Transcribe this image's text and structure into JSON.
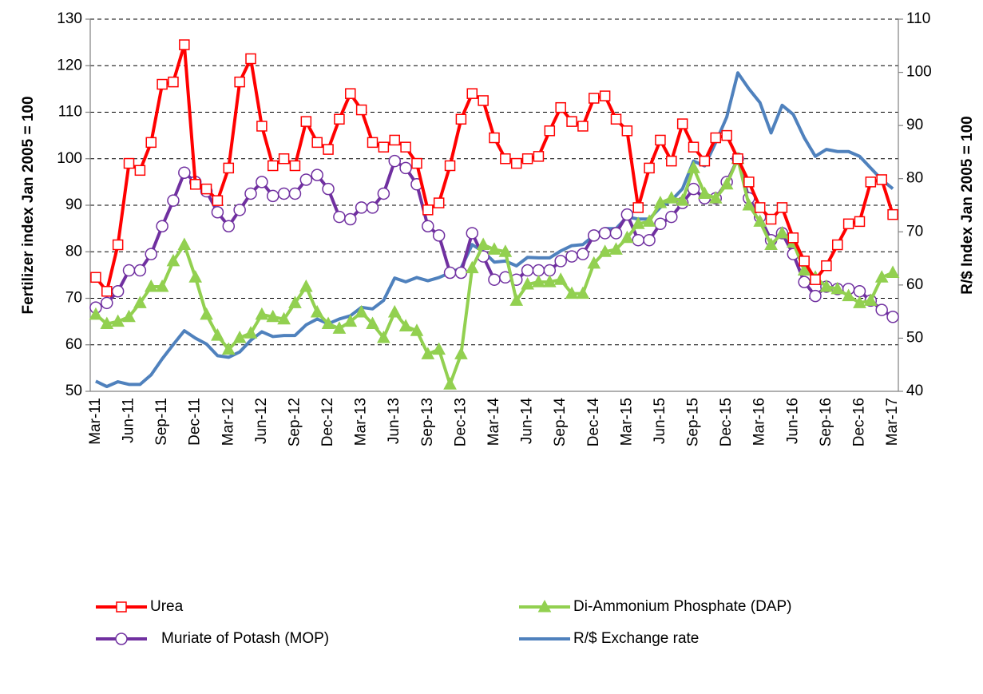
{
  "chart_data": {
    "type": "line",
    "y_label": "Fertilizer index Jan 2005 = 100",
    "y2_label": "R/$ Index Jan 2005 = 100",
    "categories": [
      "Mar-11",
      null,
      null,
      "Jun-11",
      null,
      null,
      "Sep-11",
      null,
      null,
      "Dec-11",
      null,
      null,
      "Mar-12",
      null,
      null,
      "Jun-12",
      null,
      null,
      "Sep-12",
      null,
      null,
      "Dec-12",
      null,
      null,
      "Mar-13",
      null,
      null,
      "Jun-13",
      null,
      null,
      "Sep-13",
      null,
      null,
      "Dec-13",
      null,
      null,
      "Mar-14",
      null,
      null,
      "Jun-14",
      null,
      null,
      "Sep-14",
      null,
      null,
      "Dec-14",
      null,
      null,
      "Mar-15",
      null,
      null,
      "Jun-15",
      null,
      null,
      "Sep-15",
      null,
      null,
      "Dec-15",
      null,
      null,
      "Mar-16",
      null,
      null,
      "Jun-16",
      null,
      null,
      "Sep-16",
      null,
      null,
      "Dec-16",
      null,
      null,
      "Mar-17"
    ],
    "ylim": [
      50,
      130
    ],
    "yticks": [
      50,
      60,
      70,
      80,
      90,
      100,
      110,
      120,
      130
    ],
    "y2lim": [
      40,
      110
    ],
    "y2ticks": [
      40,
      50,
      60,
      70,
      80,
      90,
      100,
      110
    ],
    "grid": true,
    "legend": "bottom",
    "series": [
      {
        "name": "Urea",
        "color": "#ff0000",
        "marker": "square",
        "values": [
          74.5,
          71.5,
          81.5,
          99,
          97.5,
          103.5,
          116,
          116.5,
          124.5,
          94.5,
          93.5,
          91,
          98,
          116.5,
          121.5,
          107,
          98.5,
          100,
          98.5,
          108,
          103.5,
          102,
          108.5,
          114,
          110.5,
          103.5,
          102.5,
          104,
          102.5,
          99,
          89,
          90.5,
          98.5,
          108.5,
          114,
          112.5,
          104.5,
          100,
          99,
          100,
          100.5,
          106,
          111,
          108,
          107,
          113,
          113.5,
          108.5,
          106,
          89.5,
          98,
          104,
          99.5,
          107.5,
          102.5,
          99.5,
          104.5,
          105,
          100,
          95,
          89.5,
          87,
          89.5,
          83,
          78,
          74,
          77,
          81.5,
          86,
          86.5,
          95,
          95.5,
          88
        ]
      },
      {
        "name": "Di-Ammonium Phosphate (DAP)",
        "color": "#92d050",
        "marker": "triangle",
        "values": [
          66.5,
          64.5,
          65,
          66,
          69,
          72.5,
          72.5,
          78,
          81.5,
          74.5,
          66.5,
          62,
          59,
          61.5,
          62.5,
          66.5,
          66,
          65.5,
          69,
          72.5,
          67,
          64.5,
          63.5,
          65,
          67,
          64.5,
          61.5,
          67,
          64,
          63,
          58,
          59,
          51.5,
          58,
          76.5,
          81.5,
          80.5,
          80,
          69.5,
          73,
          73.5,
          73.5,
          74,
          71,
          71,
          77.5,
          80,
          80.5,
          83,
          86,
          86.5,
          90.5,
          91.5,
          91,
          98,
          92.5,
          91.5,
          94.5,
          100,
          90,
          86.5,
          81.5,
          84,
          82,
          76,
          74.5,
          72.5,
          72,
          70.5,
          69,
          69.5,
          74.5,
          75.5
        ]
      },
      {
        "name": "Muriate of Potash (MOP)",
        "color": "#7030a0",
        "marker": "circle",
        "values": [
          68,
          69,
          71.5,
          76,
          76,
          79.5,
          85.5,
          91,
          97,
          95,
          93,
          88.5,
          85.5,
          89,
          92.5,
          95,
          92,
          92.5,
          92.5,
          95.5,
          96.5,
          93.5,
          87.5,
          87,
          89.5,
          89.5,
          92.5,
          99.5,
          98,
          94.5,
          85.5,
          83.5,
          75.5,
          75.5,
          84,
          79,
          74,
          74.5,
          74,
          76,
          76,
          76,
          78,
          79,
          79.5,
          83.5,
          84,
          84,
          88,
          82.5,
          82.5,
          86,
          87.5,
          90.5,
          93.5,
          91.5,
          91.5,
          95,
          100,
          91.5,
          87.5,
          82.5,
          84,
          79.5,
          73.5,
          70.5,
          72.5,
          72,
          72,
          71.5,
          69.5,
          67.5,
          66
        ]
      },
      {
        "name": "R/$ Exchange rate",
        "color": "#4f81bd",
        "axis": "y2",
        "values": [
          41.9,
          40.9,
          41.8,
          41.3,
          41.3,
          43.1,
          46.1,
          48.8,
          51.4,
          50,
          48.9,
          46.7,
          46.4,
          47.4,
          49.6,
          51.2,
          50.3,
          50.5,
          50.5,
          52.5,
          53.6,
          52.7,
          53.6,
          54.2,
          55.8,
          55.5,
          57.1,
          61.3,
          60.6,
          61.4,
          60.8,
          61.4,
          62.3,
          63.2,
          67.6,
          66.3,
          64.3,
          64.5,
          63.6,
          65.2,
          65.1,
          65.1,
          66.4,
          67.4,
          67.6,
          69.3,
          70.6,
          70.6,
          72.8,
          72.4,
          72.4,
          74.6,
          75.9,
          78.1,
          83.3,
          82.4,
          86.8,
          91.6,
          99.9,
          96.9,
          94.3,
          88.6,
          93.8,
          92.1,
          87.7,
          84.2,
          85.5,
          85.1,
          85.1,
          84.2,
          82,
          79.8,
          78.1
        ]
      }
    ]
  }
}
